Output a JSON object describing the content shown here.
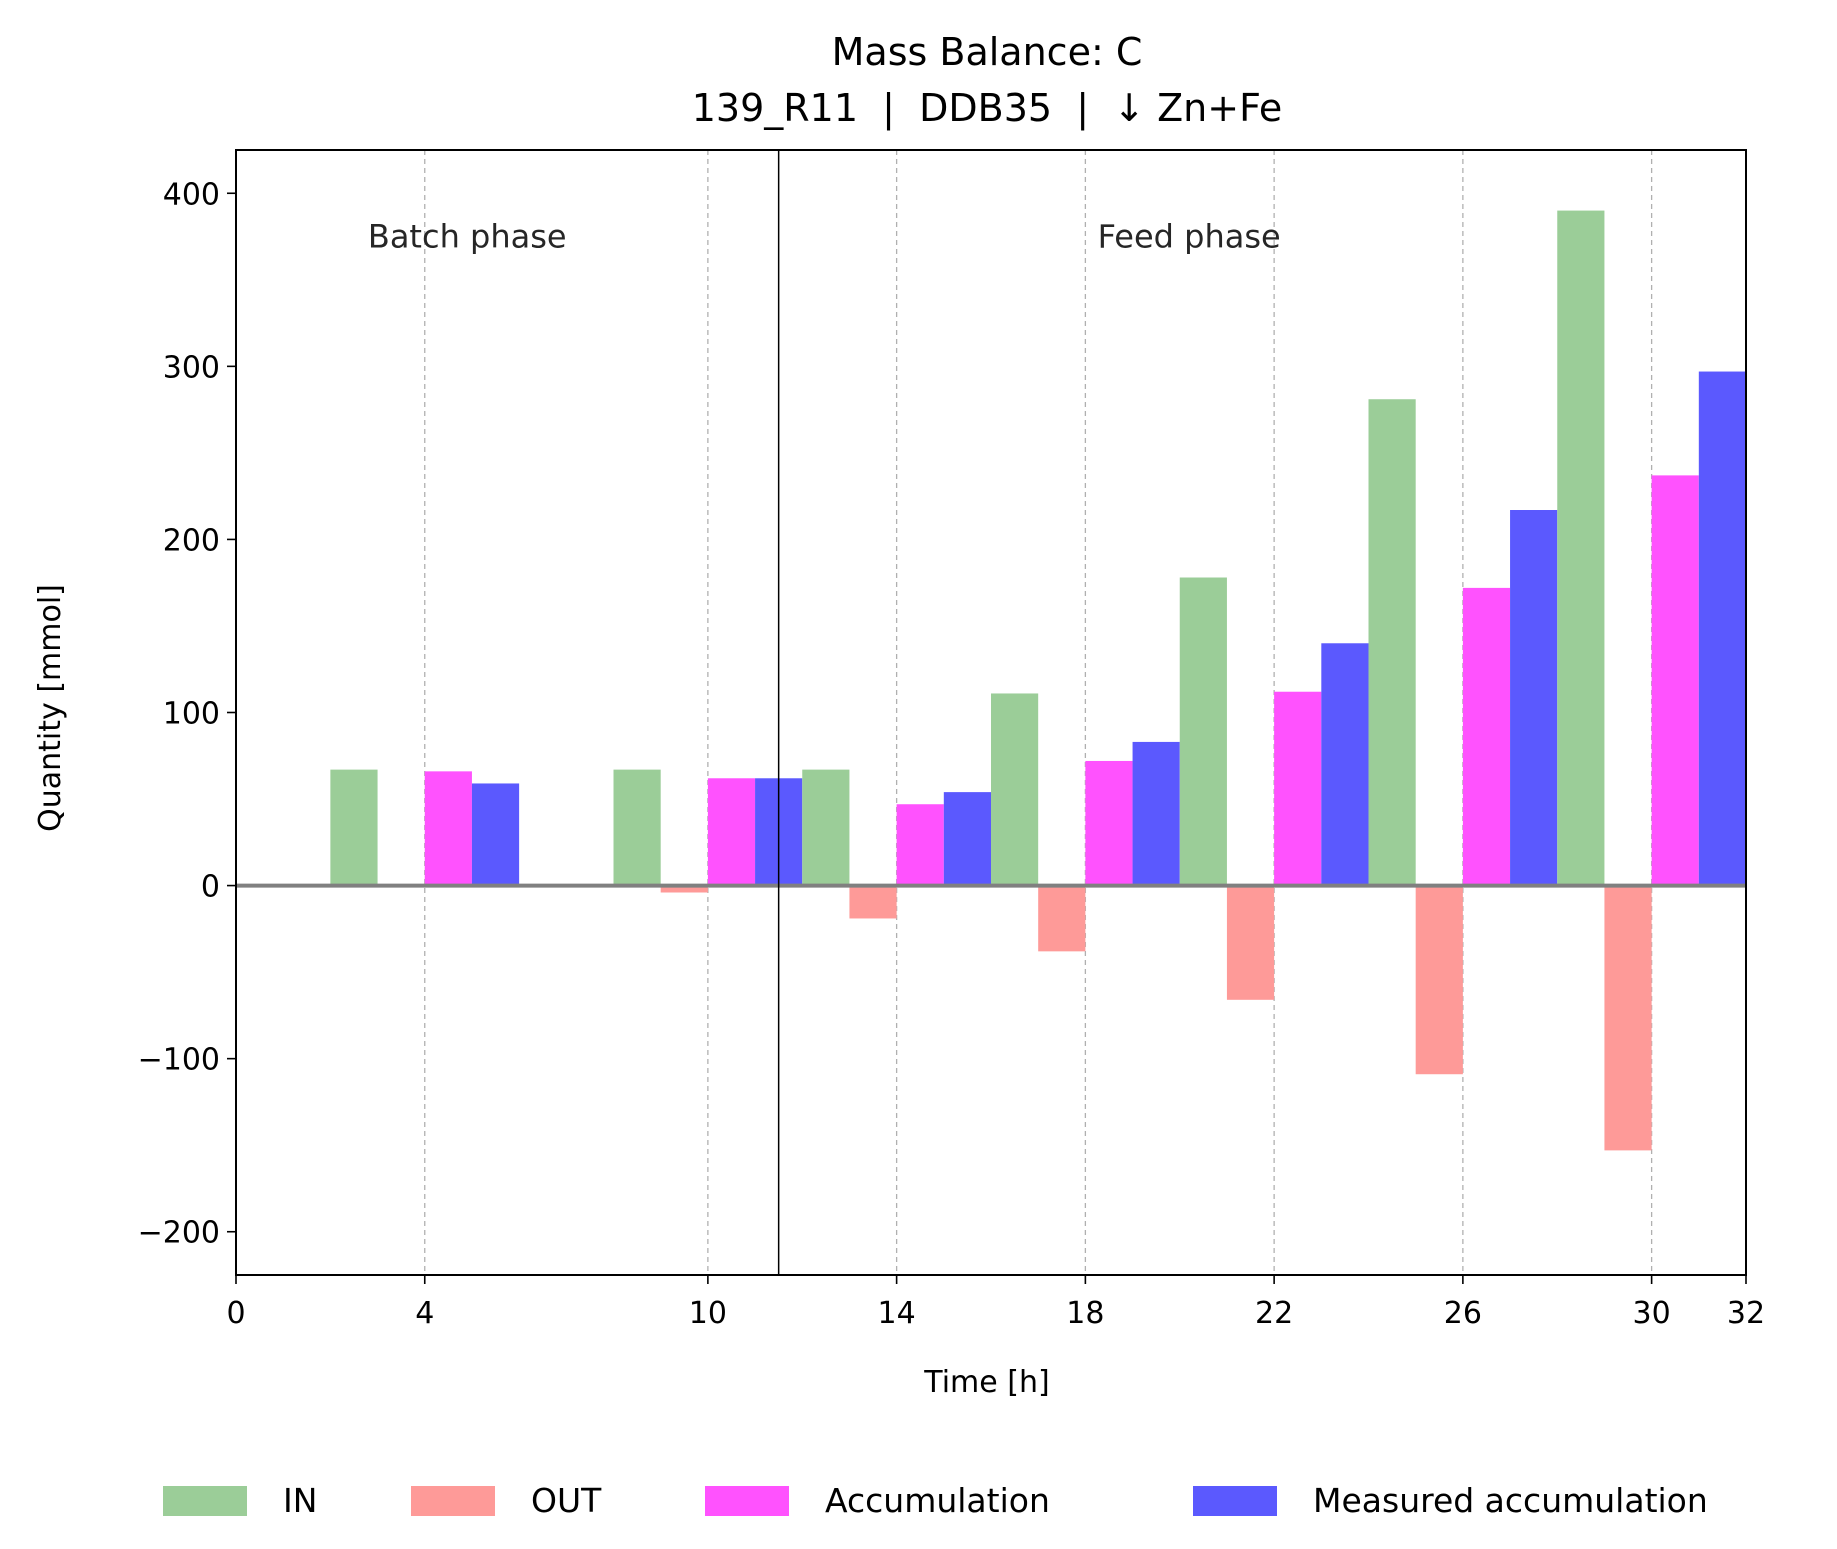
{
  "chart_data": {
    "type": "bar",
    "title": "Mass Balance: C",
    "subtitle": "139_R11  |  DDB35  |  ↓ Zn+Fe",
    "xlabel": "Time [h]",
    "ylabel": "Quantity [mmol]",
    "xlim": [
      0,
      32
    ],
    "ylim": [
      -225,
      425
    ],
    "x_ticks": [
      0,
      4,
      10,
      14,
      18,
      22,
      26,
      30,
      32
    ],
    "x_tick_labels": [
      "0",
      "4",
      "10",
      "14",
      "18",
      "22",
      "26",
      "30",
      "32"
    ],
    "y_ticks": [
      -200,
      -100,
      0,
      100,
      200,
      300,
      400
    ],
    "y_tick_labels": [
      "−200",
      "−100",
      "0",
      "100",
      "200",
      "300",
      "400"
    ],
    "categories": [
      "4",
      "10",
      "14",
      "18",
      "22",
      "26",
      "30"
    ],
    "series": [
      {
        "name": "IN",
        "color": "#9bcd98",
        "values": [
          67,
          67,
          67,
          111,
          178,
          281,
          390
        ]
      },
      {
        "name": "OUT",
        "color": "#fe9a98",
        "values": [
          -1,
          -4,
          -19,
          -38,
          -66,
          -109,
          -153
        ]
      },
      {
        "name": "Accumulation",
        "color": "#ff52fe",
        "values": [
          66,
          62,
          47,
          72,
          112,
          172,
          237
        ]
      },
      {
        "name": "Measured accumulation",
        "color": "#5b59fe",
        "values": [
          59,
          62,
          54,
          83,
          140,
          217,
          297
        ]
      }
    ],
    "phase_divider_x": 11.5,
    "phases": [
      {
        "label": "Batch phase",
        "x": 4.9
      },
      {
        "label": "Feed phase",
        "x": 20.2
      }
    ],
    "grid": "vertical dashed at x ticks",
    "zero_line": true,
    "legend_position": "bottom",
    "colors": {
      "zero_line": "#808080",
      "grid": "#b0b0b0",
      "divider": "#000000"
    }
  }
}
